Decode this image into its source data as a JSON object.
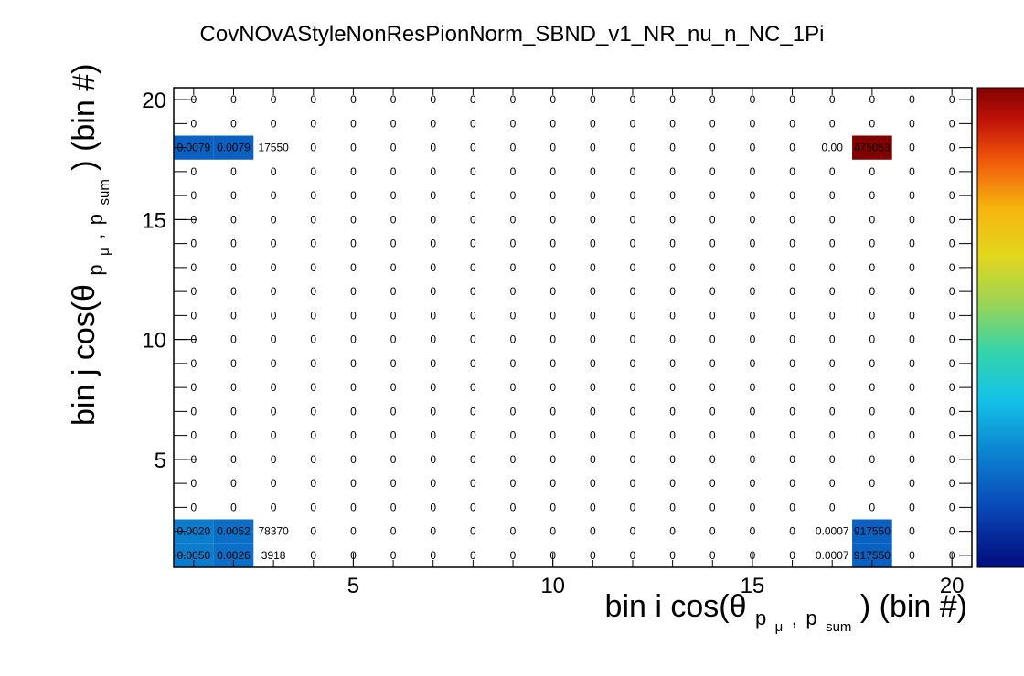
{
  "chart_data": {
    "type": "heatmap",
    "title": "CovNOvAStyleNonResPionNorm_SBND_v1_NR_nu_n_NC_1Pi",
    "xlabel": {
      "prefix": "bin i cos(θ",
      "sub_a": "p",
      "sub_mu": "μ",
      "sub_comma": ",",
      "sub_b": "p",
      "sub_sum": "sum",
      "suffix": ") (bin #)"
    },
    "ylabel": {
      "prefix": "bin j cos(θ",
      "sub_a": "p",
      "sub_mu": "μ",
      "sub_comma": ",",
      "sub_b": "p",
      "sub_sum": "sum",
      "suffix": ") (bin #)"
    },
    "x_range": [
      0.5,
      20.5
    ],
    "y_range": [
      0.5,
      20.5
    ],
    "nbins": 20,
    "x_ticks": [
      "5",
      "10",
      "15",
      "20"
    ],
    "y_ticks": [
      "5",
      "10",
      "15",
      "20"
    ],
    "x_tick_values": [
      5,
      10,
      15,
      20
    ],
    "y_tick_values": [
      5,
      10,
      15,
      20
    ],
    "default_label": "0",
    "colormap": "rainbow",
    "z_range": [
      0,
      0.004
    ],
    "colors": {
      "low": "#0a5bb0",
      "lowmid": "#0f68c0",
      "high": "#8b0000",
      "axis": "#000000"
    },
    "cells": [
      {
        "i": 1,
        "j": 1,
        "label": "0.0050",
        "z": 0.0009
      },
      {
        "i": 2,
        "j": 1,
        "label": "0.0026",
        "z": 0.0008
      },
      {
        "i": 3,
        "j": 1,
        "label": "3918",
        "z": 0
      },
      {
        "i": 1,
        "j": 2,
        "label": "0.0020",
        "z": 0.0009
      },
      {
        "i": 2,
        "j": 2,
        "label": "0.0052",
        "z": 0.0008
      },
      {
        "i": 3,
        "j": 2,
        "label": "78370",
        "z": 0
      },
      {
        "i": 1,
        "j": 18,
        "label": "0.0079",
        "z": 0.0007
      },
      {
        "i": 2,
        "j": 18,
        "label": "0.0079",
        "z": 0.0007
      },
      {
        "i": 3,
        "j": 18,
        "label": "17550",
        "z": 0
      },
      {
        "i": 17,
        "j": 1,
        "label": "0.0007",
        "z": 0
      },
      {
        "i": 18,
        "j": 1,
        "label": "917550",
        "z": 0.0007
      },
      {
        "i": 17,
        "j": 2,
        "label": "0.0007",
        "z": 0
      },
      {
        "i": 18,
        "j": 2,
        "label": "917550",
        "z": 0.0007
      },
      {
        "i": 17,
        "j": 18,
        "label": "0.00",
        "z": 0
      },
      {
        "i": 18,
        "j": 18,
        "label": "475053",
        "z": 0.004
      }
    ]
  }
}
